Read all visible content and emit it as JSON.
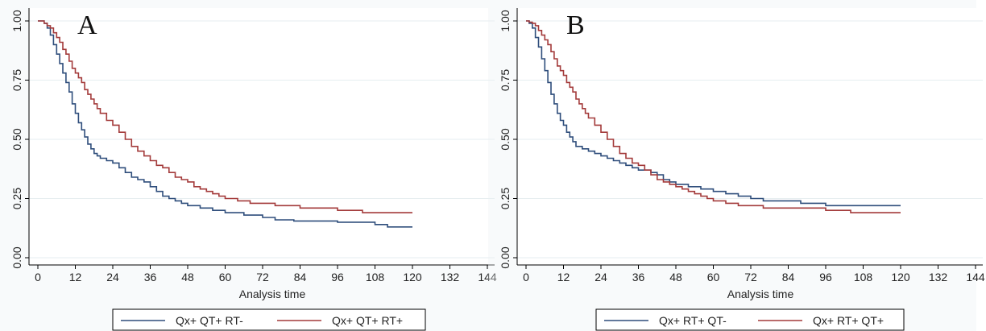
{
  "chart_data": [
    {
      "type": "line",
      "panel_label": "A",
      "xlabel": "Analysis time",
      "ylabel": "",
      "xlim": [
        0,
        144
      ],
      "ylim": [
        0,
        1
      ],
      "xticks": [
        "0",
        "12",
        "24",
        "36",
        "48",
        "60",
        "72",
        "84",
        "96",
        "108",
        "120",
        "132",
        "144"
      ],
      "yticks": [
        "0.00",
        "0.25",
        "0.50",
        "0.75",
        "1.00"
      ],
      "grid": true,
      "legend_position": "bottom",
      "series": [
        {
          "name": "Qx+ QT+ RT-",
          "color": "#2e4d7b",
          "points": [
            [
              0,
              1.0
            ],
            [
              2,
              0.99
            ],
            [
              3,
              0.97
            ],
            [
              4,
              0.94
            ],
            [
              5,
              0.9
            ],
            [
              6,
              0.86
            ],
            [
              7,
              0.82
            ],
            [
              8,
              0.78
            ],
            [
              9,
              0.74
            ],
            [
              10,
              0.7
            ],
            [
              11,
              0.65
            ],
            [
              12,
              0.61
            ],
            [
              13,
              0.57
            ],
            [
              14,
              0.54
            ],
            [
              15,
              0.51
            ],
            [
              16,
              0.48
            ],
            [
              17,
              0.46
            ],
            [
              18,
              0.44
            ],
            [
              19,
              0.43
            ],
            [
              20,
              0.42
            ],
            [
              22,
              0.41
            ],
            [
              24,
              0.4
            ],
            [
              26,
              0.38
            ],
            [
              28,
              0.36
            ],
            [
              30,
              0.34
            ],
            [
              32,
              0.33
            ],
            [
              34,
              0.32
            ],
            [
              36,
              0.3
            ],
            [
              38,
              0.28
            ],
            [
              40,
              0.26
            ],
            [
              42,
              0.25
            ],
            [
              44,
              0.24
            ],
            [
              46,
              0.23
            ],
            [
              48,
              0.22
            ],
            [
              52,
              0.21
            ],
            [
              56,
              0.2
            ],
            [
              60,
              0.19
            ],
            [
              66,
              0.18
            ],
            [
              72,
              0.17
            ],
            [
              76,
              0.16
            ],
            [
              82,
              0.155
            ],
            [
              96,
              0.15
            ],
            [
              104,
              0.15
            ],
            [
              108,
              0.14
            ],
            [
              112,
              0.13
            ],
            [
              120,
              0.13
            ]
          ]
        },
        {
          "name": "Qx+ QT+ RT+",
          "color": "#a33a3a",
          "points": [
            [
              0,
              1.0
            ],
            [
              2,
              0.99
            ],
            [
              3,
              0.98
            ],
            [
              4,
              0.97
            ],
            [
              5,
              0.95
            ],
            [
              6,
              0.93
            ],
            [
              7,
              0.91
            ],
            [
              8,
              0.88
            ],
            [
              9,
              0.86
            ],
            [
              10,
              0.83
            ],
            [
              11,
              0.8
            ],
            [
              12,
              0.78
            ],
            [
              13,
              0.76
            ],
            [
              14,
              0.74
            ],
            [
              15,
              0.71
            ],
            [
              16,
              0.69
            ],
            [
              17,
              0.67
            ],
            [
              18,
              0.65
            ],
            [
              19,
              0.63
            ],
            [
              20,
              0.61
            ],
            [
              22,
              0.58
            ],
            [
              24,
              0.56
            ],
            [
              26,
              0.53
            ],
            [
              28,
              0.5
            ],
            [
              30,
              0.47
            ],
            [
              32,
              0.45
            ],
            [
              34,
              0.43
            ],
            [
              36,
              0.41
            ],
            [
              38,
              0.39
            ],
            [
              40,
              0.38
            ],
            [
              42,
              0.36
            ],
            [
              44,
              0.34
            ],
            [
              46,
              0.33
            ],
            [
              48,
              0.32
            ],
            [
              50,
              0.3
            ],
            [
              52,
              0.29
            ],
            [
              54,
              0.28
            ],
            [
              56,
              0.27
            ],
            [
              58,
              0.26
            ],
            [
              60,
              0.25
            ],
            [
              64,
              0.24
            ],
            [
              68,
              0.23
            ],
            [
              72,
              0.23
            ],
            [
              76,
              0.22
            ],
            [
              84,
              0.21
            ],
            [
              96,
              0.2
            ],
            [
              104,
              0.19
            ],
            [
              112,
              0.19
            ],
            [
              120,
              0.19
            ]
          ]
        }
      ]
    },
    {
      "type": "line",
      "panel_label": "B",
      "xlabel": "Analysis time",
      "ylabel": "",
      "xlim": [
        0,
        144
      ],
      "ylim": [
        0,
        1
      ],
      "xticks": [
        "0",
        "12",
        "24",
        "36",
        "48",
        "60",
        "72",
        "84",
        "96",
        "108",
        "120",
        "132",
        "144"
      ],
      "yticks": [
        "0.00",
        "0.25",
        "0.50",
        "0.75",
        "1.00"
      ],
      "grid": true,
      "legend_position": "bottom",
      "series": [
        {
          "name": "Qx+ RT+ QT-",
          "color": "#2e4d7b",
          "points": [
            [
              0,
              1.0
            ],
            [
              1,
              0.99
            ],
            [
              2,
              0.97
            ],
            [
              3,
              0.93
            ],
            [
              4,
              0.89
            ],
            [
              5,
              0.84
            ],
            [
              6,
              0.79
            ],
            [
              7,
              0.74
            ],
            [
              8,
              0.69
            ],
            [
              9,
              0.65
            ],
            [
              10,
              0.61
            ],
            [
              11,
              0.58
            ],
            [
              12,
              0.56
            ],
            [
              13,
              0.53
            ],
            [
              14,
              0.51
            ],
            [
              15,
              0.49
            ],
            [
              16,
              0.47
            ],
            [
              18,
              0.46
            ],
            [
              20,
              0.45
            ],
            [
              22,
              0.44
            ],
            [
              24,
              0.43
            ],
            [
              26,
              0.42
            ],
            [
              28,
              0.41
            ],
            [
              30,
              0.4
            ],
            [
              32,
              0.39
            ],
            [
              34,
              0.38
            ],
            [
              36,
              0.37
            ],
            [
              40,
              0.36
            ],
            [
              42,
              0.35
            ],
            [
              44,
              0.33
            ],
            [
              46,
              0.32
            ],
            [
              48,
              0.31
            ],
            [
              52,
              0.3
            ],
            [
              56,
              0.29
            ],
            [
              60,
              0.28
            ],
            [
              64,
              0.27
            ],
            [
              68,
              0.26
            ],
            [
              72,
              0.25
            ],
            [
              76,
              0.24
            ],
            [
              80,
              0.24
            ],
            [
              88,
              0.23
            ],
            [
              96,
              0.22
            ],
            [
              104,
              0.22
            ],
            [
              120,
              0.22
            ]
          ]
        },
        {
          "name": "Qx+ RT+ QT+",
          "color": "#a33a3a",
          "points": [
            [
              0,
              1.0
            ],
            [
              1,
              0.995
            ],
            [
              2,
              0.99
            ],
            [
              3,
              0.98
            ],
            [
              4,
              0.96
            ],
            [
              5,
              0.94
            ],
            [
              6,
              0.92
            ],
            [
              7,
              0.9
            ],
            [
              8,
              0.87
            ],
            [
              9,
              0.84
            ],
            [
              10,
              0.81
            ],
            [
              11,
              0.79
            ],
            [
              12,
              0.77
            ],
            [
              13,
              0.74
            ],
            [
              14,
              0.72
            ],
            [
              15,
              0.7
            ],
            [
              16,
              0.67
            ],
            [
              17,
              0.65
            ],
            [
              18,
              0.63
            ],
            [
              19,
              0.61
            ],
            [
              20,
              0.59
            ],
            [
              22,
              0.56
            ],
            [
              24,
              0.53
            ],
            [
              26,
              0.5
            ],
            [
              28,
              0.47
            ],
            [
              30,
              0.44
            ],
            [
              32,
              0.42
            ],
            [
              34,
              0.4
            ],
            [
              36,
              0.39
            ],
            [
              38,
              0.37
            ],
            [
              40,
              0.35
            ],
            [
              42,
              0.33
            ],
            [
              44,
              0.32
            ],
            [
              46,
              0.31
            ],
            [
              48,
              0.3
            ],
            [
              50,
              0.29
            ],
            [
              52,
              0.28
            ],
            [
              54,
              0.27
            ],
            [
              56,
              0.26
            ],
            [
              58,
              0.25
            ],
            [
              60,
              0.24
            ],
            [
              64,
              0.23
            ],
            [
              68,
              0.22
            ],
            [
              72,
              0.22
            ],
            [
              76,
              0.21
            ],
            [
              84,
              0.21
            ],
            [
              96,
              0.2
            ],
            [
              104,
              0.19
            ],
            [
              112,
              0.19
            ],
            [
              120,
              0.19
            ]
          ]
        }
      ]
    }
  ]
}
